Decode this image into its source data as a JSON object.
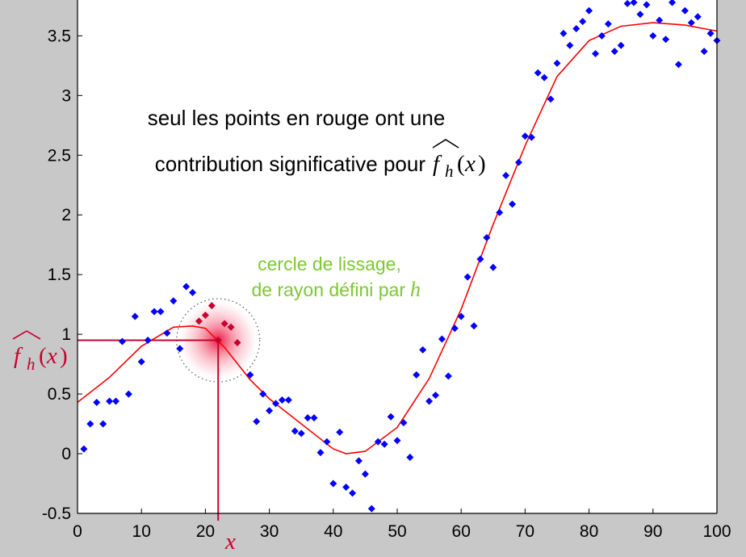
{
  "chart_data": {
    "type": "scatter",
    "xlim": [
      0,
      100
    ],
    "ylim": [
      -0.5,
      3.8
    ],
    "x_ticks": [
      0,
      10,
      20,
      30,
      40,
      50,
      60,
      70,
      80,
      90,
      100
    ],
    "y_ticks": [
      -0.5,
      0,
      0.5,
      1,
      1.5,
      2,
      2.5,
      3,
      3.5
    ],
    "x_tick_labels": [
      "0",
      "10",
      "20",
      "30",
      "40",
      "50",
      "60",
      "70",
      "80",
      "90",
      "100"
    ],
    "y_tick_labels": [
      "-0.5",
      "0",
      "0.5",
      "1",
      "1.5",
      "2",
      "2.5",
      "3",
      "3.5"
    ],
    "grid": false,
    "series": [
      {
        "kind": "points",
        "color": "#0000ff",
        "x": [
          1,
          2,
          3,
          4,
          5,
          6,
          7,
          8,
          9,
          10,
          11,
          12,
          13,
          14,
          15,
          16,
          17,
          18,
          27,
          28,
          29,
          30,
          31,
          32,
          33,
          34,
          35,
          36,
          37,
          38,
          39,
          40,
          41,
          42,
          43,
          44,
          45,
          46,
          47,
          48,
          49,
          50,
          51,
          52,
          53,
          54,
          55,
          56,
          57,
          58,
          59,
          60,
          61,
          62,
          63,
          64,
          65,
          66,
          67,
          68,
          69,
          70,
          71,
          72,
          73,
          74,
          75,
          76,
          77,
          78,
          79,
          80,
          81,
          82,
          83,
          84,
          85,
          86,
          87,
          88,
          89,
          90,
          91,
          92,
          93,
          94,
          95,
          96,
          97,
          98,
          99,
          100
        ],
        "y": [
          0.04,
          0.25,
          0.43,
          0.25,
          0.44,
          0.44,
          0.94,
          0.5,
          1.15,
          0.77,
          0.95,
          1.19,
          1.19,
          1.01,
          1.28,
          0.88,
          1.4,
          1.35,
          0.66,
          0.27,
          0.5,
          0.36,
          0.42,
          0.45,
          0.45,
          0.19,
          0.17,
          0.3,
          0.3,
          0.01,
          0.1,
          -0.25,
          0.18,
          -0.28,
          -0.33,
          -0.06,
          -0.17,
          -0.46,
          0.1,
          0.08,
          0.31,
          0.11,
          0.26,
          -0.03,
          0.66,
          0.87,
          0.44,
          0.49,
          0.96,
          0.65,
          1.05,
          1.15,
          1.48,
          1.07,
          1.63,
          1.81,
          1.56,
          2.02,
          2.33,
          2.09,
          2.44,
          2.66,
          2.65,
          3.19,
          3.15,
          2.97,
          3.27,
          3.52,
          3.42,
          3.56,
          3.62,
          3.71,
          3.35,
          3.5,
          3.6,
          3.37,
          3.42,
          3.77,
          3.78,
          3.68,
          3.76,
          3.5,
          3.63,
          3.47,
          3.78,
          3.26,
          3.71,
          3.61,
          3.66,
          3.37,
          3.52,
          3.46
        ]
      },
      {
        "kind": "points",
        "color": "#c8002d",
        "x": [
          19,
          20,
          21,
          22,
          23,
          24,
          25
        ],
        "y": [
          1.11,
          1.16,
          1.24,
          0.95,
          1.09,
          1.06,
          0.93
        ]
      },
      {
        "kind": "smooth-curve",
        "color": "#ff0000",
        "x": [
          0,
          5,
          10,
          15,
          18,
          20,
          23,
          27,
          30,
          35,
          40,
          42,
          45,
          50,
          55,
          60,
          65,
          70,
          75,
          80,
          85,
          90,
          95,
          100
        ],
        "y": [
          0.43,
          0.64,
          0.9,
          1.06,
          1.07,
          1.05,
          0.89,
          0.62,
          0.46,
          0.25,
          0.04,
          0.0,
          0.02,
          0.22,
          0.63,
          1.21,
          1.92,
          2.58,
          3.16,
          3.46,
          3.58,
          3.61,
          3.59,
          3.54
        ]
      }
    ],
    "estimate_point": {
      "x": 22,
      "y": 0.95
    },
    "smoothing_circle_radius_x": 6.5
  },
  "annotations": {
    "main_line1": "seul les points en rouge ont une",
    "main_line2": "contribution significative pour",
    "circle_line1": "cercle de lissage,",
    "circle_line2": "de rayon défini par",
    "h_symbol": "h",
    "f_symbol": "f",
    "paren_open": "(",
    "paren_close": ")",
    "x_symbol": "x",
    "colors": {
      "annotation_text": "#000000",
      "circle_text": "#7dc832",
      "estimate": "#c8002d"
    }
  }
}
